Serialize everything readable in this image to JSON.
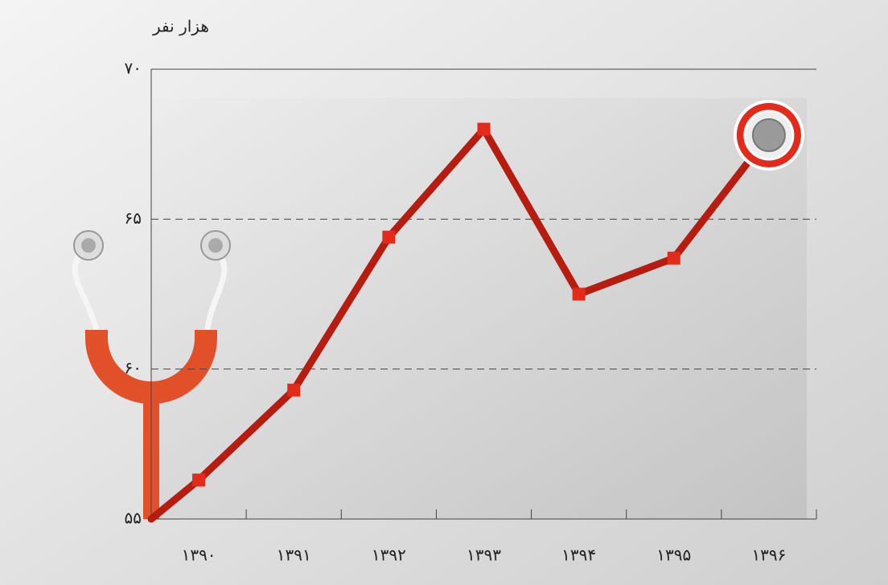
{
  "chart_data": {
    "type": "line",
    "y_label": "هزار نفر",
    "categories": [
      "۱۳۹۰",
      "۱۳۹۱",
      "۱۳۹۲",
      "۱۳۹۳",
      "۱۳۹۴",
      "۱۳۹۵",
      "۱۳۹۶"
    ],
    "values": [
      56.3,
      59.3,
      64.4,
      68.0,
      62.5,
      63.7,
      67.8
    ],
    "color": "#b71c10",
    "marker_color": "#e42a1a",
    "ylim": [
      55,
      70
    ],
    "yticks": [
      {
        "value": 55,
        "label": "۵۵"
      },
      {
        "value": 60,
        "label": "۶۰"
      },
      {
        "value": 65,
        "label": "۶۵"
      },
      {
        "value": 70,
        "label": "۷۰"
      }
    ],
    "grid": true
  }
}
